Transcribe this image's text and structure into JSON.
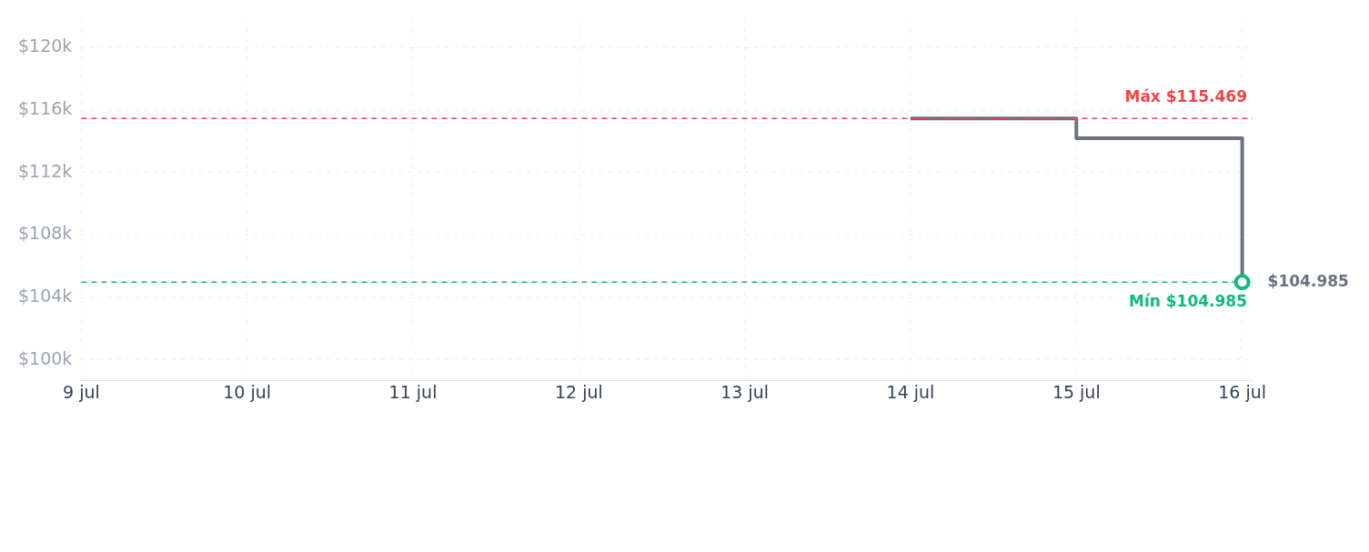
{
  "chart_data": {
    "type": "step",
    "x": [
      "--07-14",
      "--07-15",
      "--07-16"
    ],
    "series": [
      {
        "color": "#6b7280",
        "values": [
          115469,
          114200,
          104985
        ]
      }
    ],
    "xlim": [
      "--07-09",
      "--07-16T01:30"
    ],
    "xticks": [
      {
        "value": "--07-09",
        "label": "9 jul"
      },
      {
        "value": "--07-10",
        "label": "10 jul"
      },
      {
        "value": "--07-11",
        "label": "11 jul"
      },
      {
        "value": "--07-12",
        "label": "12 jul"
      },
      {
        "value": "--07-13",
        "label": "13 jul"
      },
      {
        "value": "--07-14",
        "label": "14 jul"
      },
      {
        "value": "--07-15",
        "label": "15 jul"
      },
      {
        "value": "--07-16",
        "label": "16 jul"
      }
    ],
    "ylim": [
      98700,
      121800
    ],
    "yticks": [
      {
        "value": 100000,
        "label": "$100k"
      },
      {
        "value": 104000,
        "label": "$104k"
      },
      {
        "value": 108000,
        "label": "$108k"
      },
      {
        "value": 112000,
        "label": "$112k"
      },
      {
        "value": 116000,
        "label": "$116k"
      },
      {
        "value": 120000,
        "label": "$120k"
      }
    ],
    "ref_lines": [
      {
        "axis": "y",
        "value": 115469,
        "label": "Máx $115.469",
        "color": "#ef4444",
        "line_style": "dashed"
      },
      {
        "axis": "y",
        "value": 104985,
        "label": "Mín $104.985",
        "color": "#10b981",
        "line_style": "dashed"
      }
    ],
    "annotations": [
      {
        "text": "$104.985",
        "x": "--07-16",
        "y": 104985
      }
    ],
    "grid": true,
    "marker": "none",
    "line_style": "solid"
  }
}
